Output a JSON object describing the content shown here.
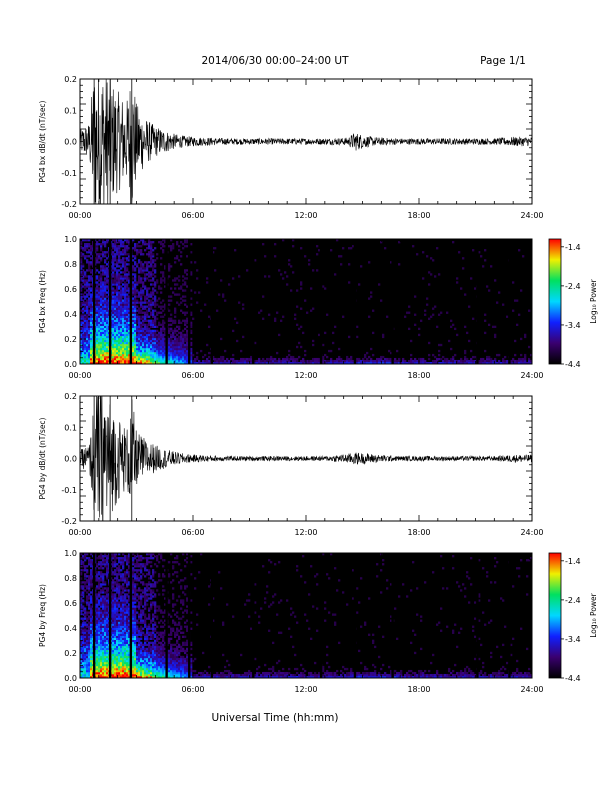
{
  "header": {
    "title": "2014/06/30   00:00–24:00 UT",
    "page_label": "Page 1/1"
  },
  "footer": {
    "xlabel": "Universal Time (hh:mm)"
  },
  "colorbar": {
    "label": "Log₁₀ Power",
    "ticks": [
      "-1.4",
      "-2.4",
      "-3.4",
      "-4.4"
    ],
    "tick_values": [
      -1.4,
      -2.4,
      -3.4,
      -4.4
    ],
    "range": [
      -4.4,
      -1.2
    ],
    "colors": [
      "#000000",
      "#3a0070",
      "#1020ff",
      "#00d8ff",
      "#00e060",
      "#f0f000",
      "#ff0000"
    ]
  },
  "chart_data": [
    {
      "type": "line",
      "ylabel": "PG4 bx dB/dt (nT/sec)",
      "ylim": [
        -0.2,
        0.2
      ],
      "yticks": [
        "0.2",
        "0.1",
        "0.0",
        "-0.1",
        "-0.2"
      ],
      "xlim": [
        0,
        24
      ],
      "xticks": [
        "00:00",
        "06:00",
        "12:00",
        "18:00",
        "24:00"
      ],
      "envelope": {
        "x_hours": [
          0,
          0.5,
          0.75,
          1.0,
          1.3,
          1.6,
          2.0,
          2.5,
          2.75,
          3.0,
          3.5,
          4.0,
          4.5,
          5.0,
          5.5,
          6.0,
          8.0,
          10.0,
          12.0,
          13.0,
          14.2,
          14.6,
          15.0,
          15.5,
          16.0,
          17.0,
          18.0,
          20.0,
          22.0,
          23.0,
          24.0
        ],
        "amplitude": [
          0.03,
          0.05,
          0.2,
          0.2,
          0.2,
          0.17,
          0.13,
          0.11,
          0.2,
          0.1,
          0.06,
          0.04,
          0.03,
          0.02,
          0.015,
          0.012,
          0.008,
          0.008,
          0.008,
          0.008,
          0.01,
          0.025,
          0.018,
          0.012,
          0.01,
          0.008,
          0.008,
          0.008,
          0.008,
          0.012,
          0.012
        ]
      }
    },
    {
      "type": "heatmap",
      "ylabel": "PG4 bx Freq (Hz)",
      "ylim": [
        0.0,
        1.0
      ],
      "yticks": [
        "1.0",
        "0.8",
        "0.6",
        "0.4",
        "0.2",
        "0.0"
      ],
      "xlim": [
        0,
        24
      ],
      "xticks": [
        "00:00",
        "06:00",
        "12:00",
        "18:00",
        "24:00"
      ],
      "gaps_hours": [
        0.75,
        1.6,
        2.7,
        4.6,
        5.8,
        7.0,
        9.2,
        12.8,
        14.6,
        16.6,
        21.1,
        22.8
      ]
    },
    {
      "type": "line",
      "ylabel": "PG4 by dB/dt (nT/sec)",
      "ylim": [
        -0.2,
        0.2
      ],
      "yticks": [
        "0.2",
        "0.1",
        "0.0",
        "-0.1",
        "-0.2"
      ],
      "xlim": [
        0,
        24
      ],
      "xticks": [
        "00:00",
        "06:00",
        "12:00",
        "18:00",
        "24:00"
      ],
      "envelope": {
        "x_hours": [
          0,
          0.5,
          0.75,
          1.0,
          1.3,
          1.6,
          2.0,
          2.5,
          2.75,
          3.0,
          3.5,
          4.0,
          4.5,
          5.0,
          5.5,
          6.0,
          8.0,
          10.0,
          12.0,
          13.0,
          14.2,
          14.6,
          15.0,
          15.5,
          16.0,
          17.0,
          18.0,
          20.0,
          22.0,
          23.0,
          24.0
        ],
        "amplitude": [
          0.02,
          0.04,
          0.15,
          0.2,
          0.2,
          0.15,
          0.11,
          0.08,
          0.16,
          0.07,
          0.05,
          0.035,
          0.025,
          0.018,
          0.013,
          0.01,
          0.006,
          0.006,
          0.006,
          0.006,
          0.012,
          0.016,
          0.014,
          0.012,
          0.009,
          0.006,
          0.006,
          0.006,
          0.006,
          0.01,
          0.01
        ]
      }
    },
    {
      "type": "heatmap",
      "ylabel": "PG4 by Freq (Hz)",
      "ylim": [
        0.0,
        1.0
      ],
      "yticks": [
        "1.0",
        "0.8",
        "0.6",
        "0.4",
        "0.2",
        "0.0"
      ],
      "xlim": [
        0,
        24
      ],
      "xticks": [
        "00:00",
        "06:00",
        "12:00",
        "18:00",
        "24:00"
      ],
      "gaps_hours": [
        0.75,
        1.6,
        2.7,
        4.6,
        5.8,
        7.0,
        9.2,
        12.8,
        14.6,
        16.6,
        21.1,
        22.8
      ]
    }
  ]
}
